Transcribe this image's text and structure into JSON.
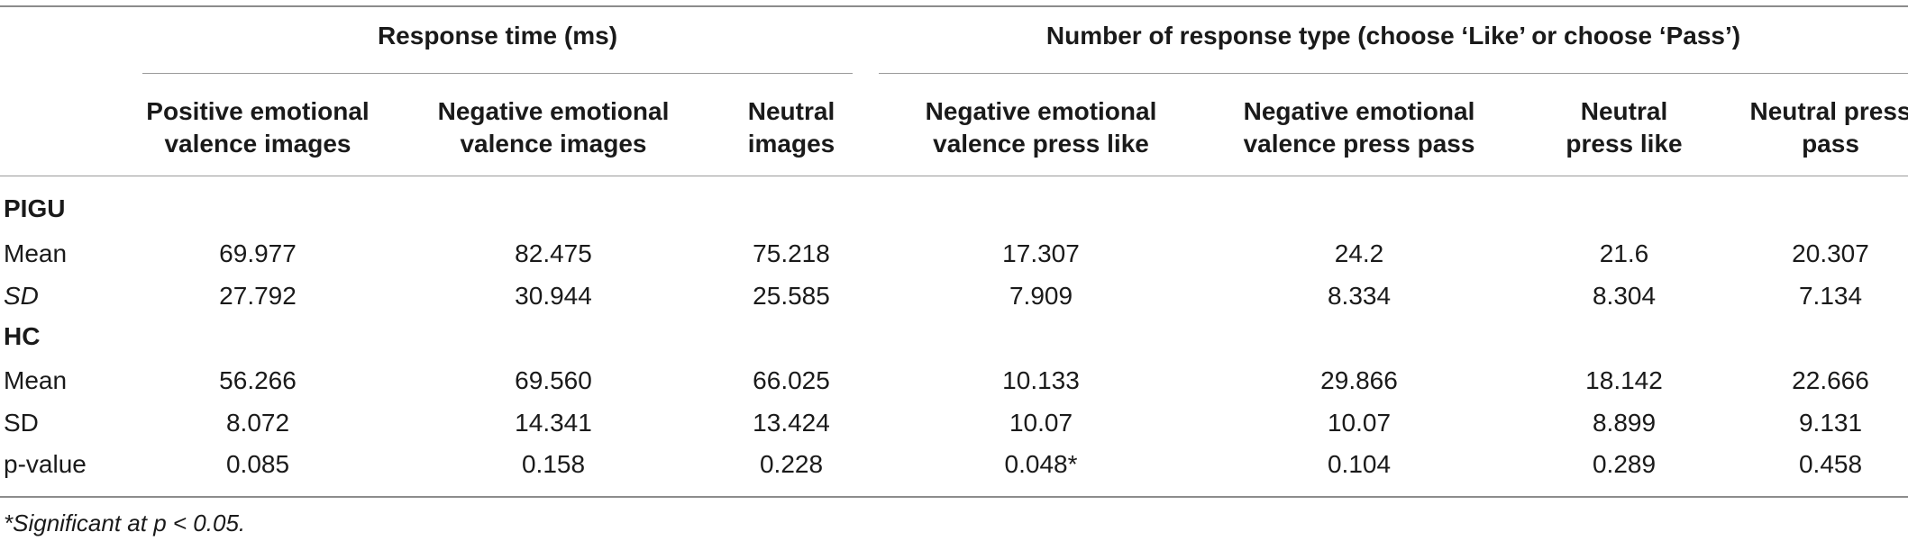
{
  "groups": [
    {
      "label": "Response time (ms)"
    },
    {
      "label": "Number of response type (choose ‘Like’ or choose ‘Pass’)"
    }
  ],
  "columns": [
    {
      "line1": "Positive emotional",
      "line2": "valence images"
    },
    {
      "line1": "Negative emotional",
      "line2": "valence images"
    },
    {
      "line1": "Neutral",
      "line2": "images"
    },
    {
      "line1": "Negative emotional",
      "line2": "valence press like"
    },
    {
      "line1": "Negative emotional",
      "line2": "valence press pass"
    },
    {
      "line1": "Neutral",
      "line2": "press like"
    },
    {
      "line1": "Neutral press",
      "line2": "pass"
    }
  ],
  "rows": [
    {
      "label": "PIGU",
      "section": true,
      "values": []
    },
    {
      "label": "Mean",
      "values": [
        "69.977",
        "82.475",
        "75.218",
        "17.307",
        "24.2",
        "21.6",
        "20.307"
      ]
    },
    {
      "label": "SD",
      "italic": true,
      "values": [
        "27.792",
        "30.944",
        "25.585",
        "7.909",
        "8.334",
        "8.304",
        "7.134"
      ]
    },
    {
      "label": "HC",
      "section": true,
      "values": []
    },
    {
      "label": "Mean",
      "values": [
        "56.266",
        "69.560",
        "66.025",
        "10.133",
        "29.866",
        "18.142",
        "22.666"
      ]
    },
    {
      "label": "SD",
      "values": [
        "8.072",
        "14.341",
        "13.424",
        "10.07",
        "10.07",
        "8.899",
        "9.131"
      ]
    },
    {
      "label": "p-value",
      "values": [
        "0.085",
        "0.158",
        "0.228",
        "0.048*",
        "0.104",
        "0.289",
        "0.458"
      ]
    }
  ],
  "footnote": "*Significant at p < 0.05."
}
